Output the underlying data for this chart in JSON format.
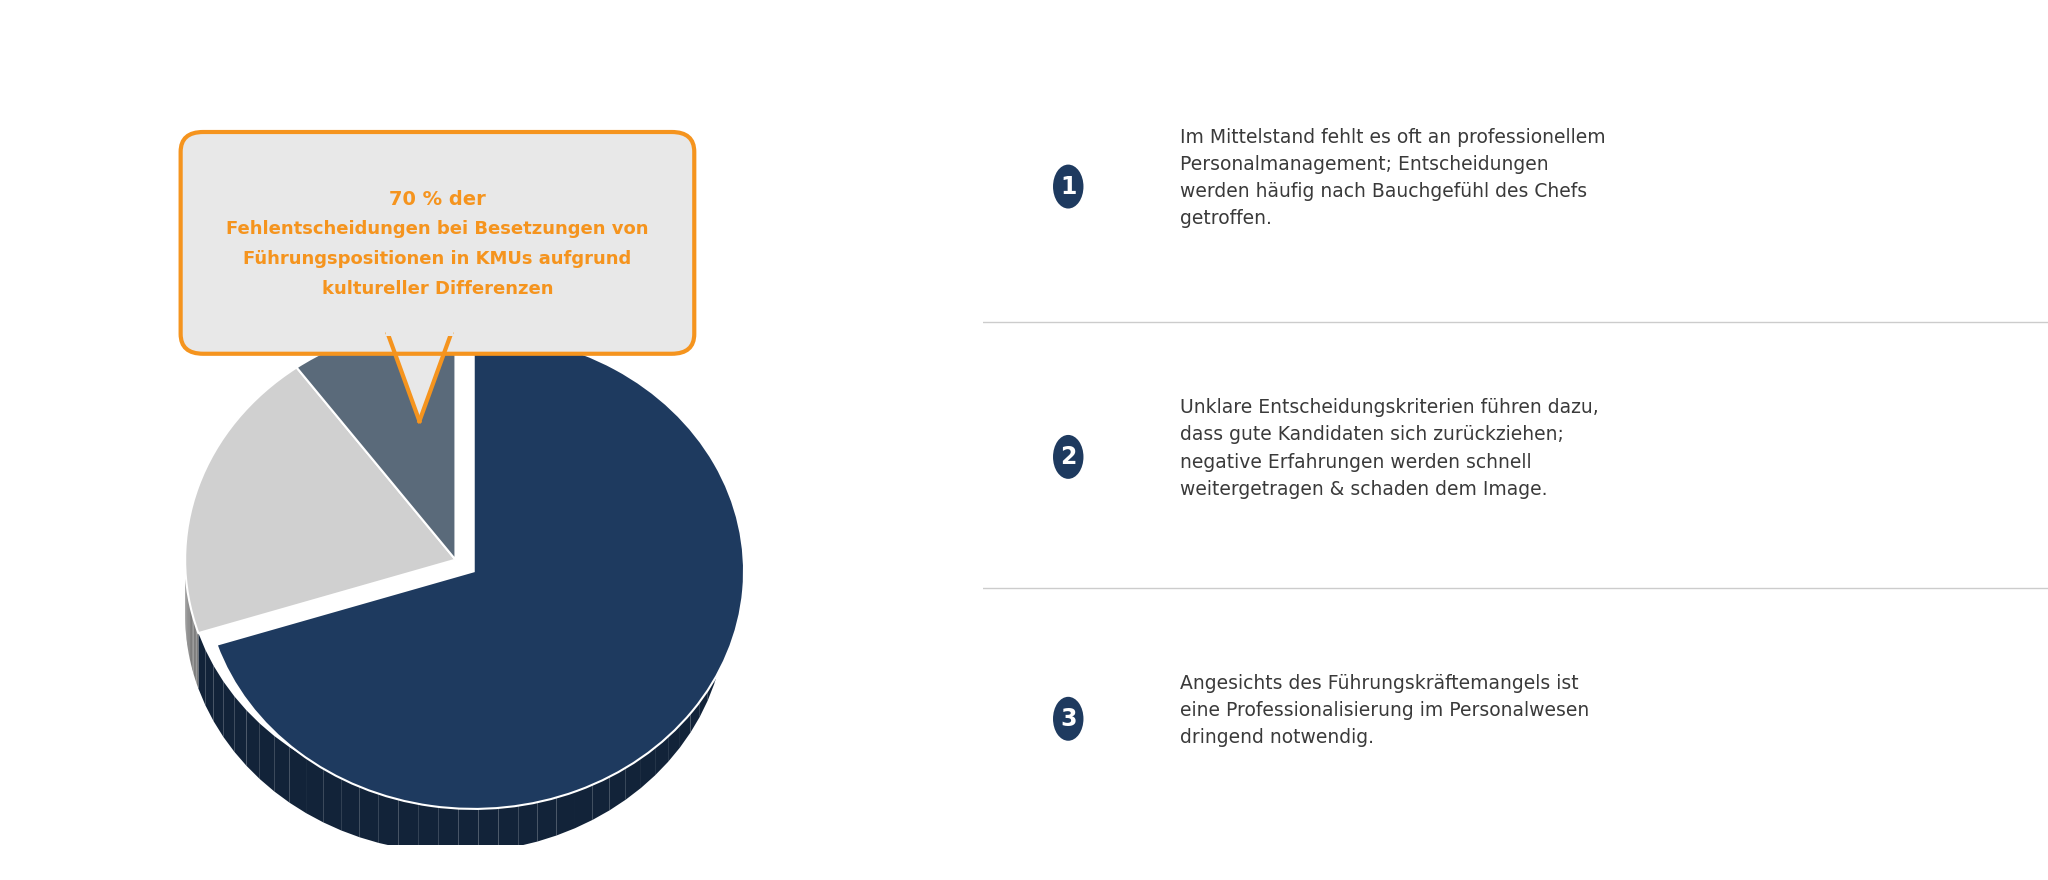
{
  "background_color": "#ffffff",
  "pie_values": [
    70,
    20,
    10
  ],
  "pie_colors": [
    "#1e3a5f",
    "#d0d0d0",
    "#5a6a7a"
  ],
  "bubble_text_line1": "70 % der",
  "bubble_text_line2": "Fehlentscheidungen bei Besetzungen von",
  "bubble_text_line3": "Führungspositionen in KMUs aufgrund",
  "bubble_text_line4": "kultureller Differenzen",
  "bubble_bg": "#e8e8e8",
  "bubble_border": "#f5941e",
  "orange_color": "#f5941e",
  "dark_blue": "#1e3a5f",
  "text_dark": "#3a3a3a",
  "divider_color": "#cccccc",
  "items": [
    {
      "number": "1",
      "text": "Im Mittelstand fehlt es oft an professionellem\nPersonalmanagement; Entscheidungen\nwerden häufig nach Bauchgefühl des Chefs\ngetroffen."
    },
    {
      "number": "2",
      "text": "Unklare Entscheidungskriterien führen dazu,\ndass gute Kandidaten sich zurückziehen;\nnegative Erfahrungen werden schnell\nweitergetragen & schaden dem Image."
    },
    {
      "number": "3",
      "text": "Angesichts des Führungskräftemangels ist\neine Professionalisierung im Personalwesen\ndringend notwendig."
    }
  ]
}
